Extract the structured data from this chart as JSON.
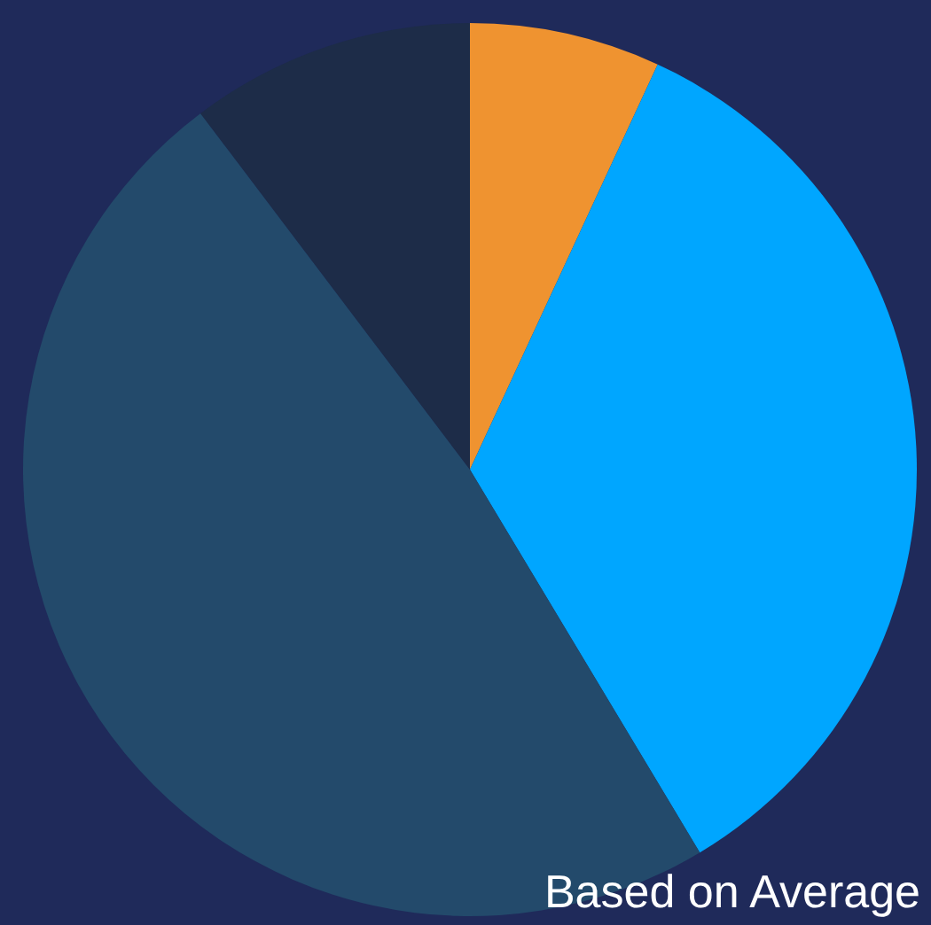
{
  "chart_data": {
    "type": "pie",
    "categories": [
      null,
      null,
      null,
      null
    ],
    "values": [
      6.9,
      34.5,
      48.3,
      10.3
    ],
    "colors": [
      "#ef9330",
      "#00a6ff",
      "#234a6b",
      "#1d2c48"
    ],
    "annotations": [
      "Based on Average"
    ]
  }
}
